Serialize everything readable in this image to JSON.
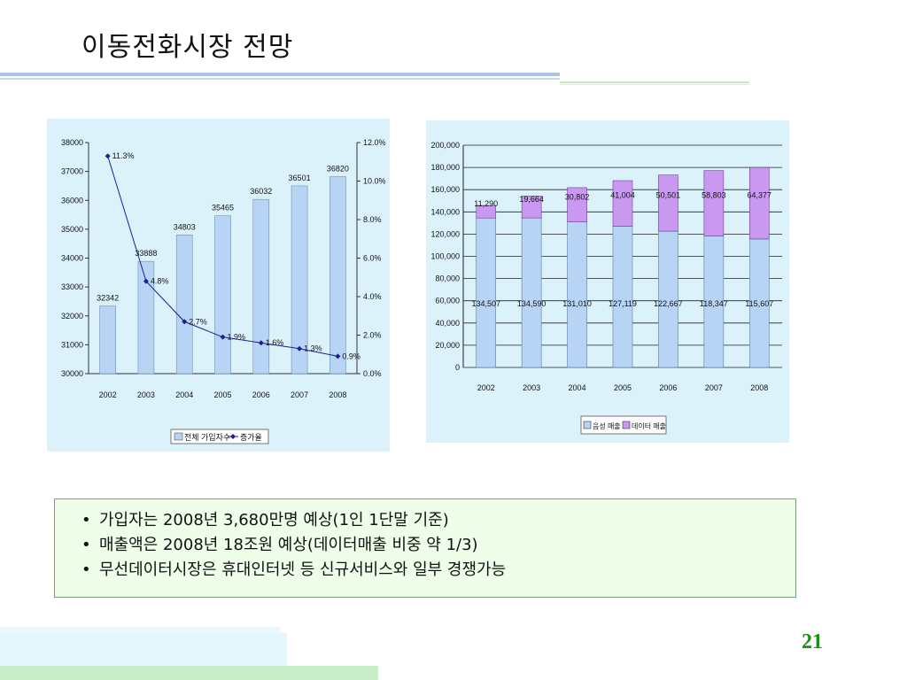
{
  "slide": {
    "title": "이동전화시장 전망",
    "page_number": "21"
  },
  "bullets": [
    "가입자는 2008년 3,680만명 예상(1인 1단말 기준)",
    "매출액은 2008년 18조원 예상(데이터매출 비중 약 1/3)",
    "무선데이터시장은 휴대인터넷 등 신규서비스와 일부 경쟁가능"
  ],
  "colors": {
    "panel_bg": "#dcf2fb",
    "bar_blue": "#b7d4f4",
    "bar_purple": "#c999f2",
    "line_navy": "#1b1f8f",
    "bullet_box_bg": "#eefee8",
    "page_number": "#1a8f1a"
  },
  "chart_data": [
    {
      "type": "bar",
      "categories": [
        "2002",
        "2003",
        "2004",
        "2005",
        "2006",
        "2007",
        "2008"
      ],
      "series": [
        {
          "name": "전체 가입자수",
          "type": "bar",
          "axis": "left",
          "values": [
            32342,
            33888,
            34803,
            35465,
            36032,
            36501,
            36820
          ],
          "labels": [
            "32342",
            "33888",
            "34803",
            "35465",
            "36032",
            "36501",
            "36820"
          ]
        },
        {
          "name": "증가율",
          "type": "line",
          "axis": "right",
          "values": [
            11.3,
            4.8,
            2.7,
            1.9,
            1.6,
            1.3,
            0.9
          ],
          "labels": [
            "11.3%",
            "4.8%",
            "2.7%",
            "1.9%",
            "1.6%",
            "1.3%",
            "0.9%"
          ]
        }
      ],
      "ylim_left": [
        30000,
        38000
      ],
      "yticks_left": [
        "38000",
        "37000",
        "36000",
        "35000",
        "34000",
        "33000",
        "32000",
        "31000",
        "30000"
      ],
      "ylim_right": [
        0,
        12
      ],
      "yticks_right": [
        "12.0%",
        "10.0%",
        "8.0%",
        "6.0%",
        "4.0%",
        "2.0%",
        "0.0%"
      ],
      "legend": [
        "전체 가입자수",
        "증가율"
      ],
      "legend_position": "bottom",
      "grid": false
    },
    {
      "type": "bar",
      "stacked": true,
      "categories": [
        "2002",
        "2003",
        "2004",
        "2005",
        "2006",
        "2007",
        "2008"
      ],
      "series": [
        {
          "name": "음성 매출",
          "values": [
            134507,
            134590,
            131010,
            127119,
            122667,
            118347,
            115607
          ],
          "labels": [
            "134,507",
            "134,590",
            "131,010",
            "127,119",
            "122,667",
            "118,347",
            "115,607"
          ]
        },
        {
          "name": "데이터 매출",
          "values": [
            11290,
            19664,
            30802,
            41004,
            50501,
            58803,
            64377
          ],
          "labels": [
            "11,290",
            "19,664",
            "30,802",
            "41,004",
            "50,501",
            "58,803",
            "64,377"
          ]
        }
      ],
      "ylim": [
        0,
        200000
      ],
      "yticks": [
        "200,000",
        "180,000",
        "160,000",
        "140,000",
        "120,000",
        "100,000",
        "80,000",
        "60,000",
        "40,000",
        "20,000",
        "0"
      ],
      "legend": [
        "음성 매출",
        "데이터 매출"
      ],
      "legend_position": "bottom",
      "grid": true
    }
  ]
}
